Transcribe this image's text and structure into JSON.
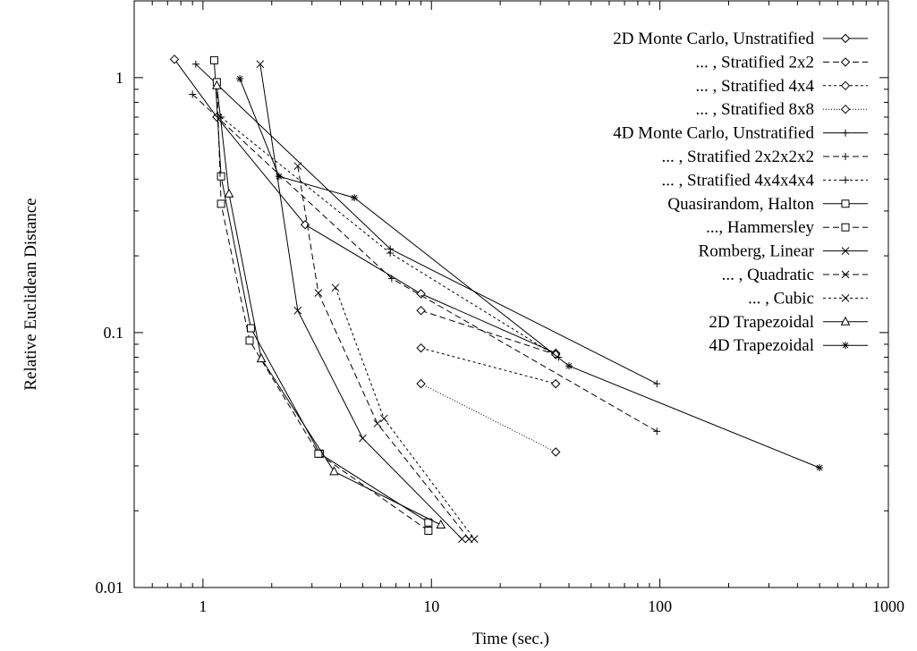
{
  "chart_data": {
    "type": "line",
    "xlabel": "Time (sec.)",
    "ylabel": "Relative Euclidean Distance",
    "x_scale": "log",
    "y_scale": "log",
    "xlim": [
      0.5,
      1000
    ],
    "ylim": [
      0.01,
      2
    ],
    "grid": false,
    "legend_position": "top-right",
    "x_ticks": [
      {
        "value": 1,
        "label": "1"
      },
      {
        "value": 10,
        "label": "10"
      },
      {
        "value": 100,
        "label": "100"
      },
      {
        "value": 1000,
        "label": "1000"
      }
    ],
    "y_ticks": [
      {
        "value": 0.01,
        "label": "0.01"
      },
      {
        "value": 0.1,
        "label": "0.1"
      },
      {
        "value": 1,
        "label": "1"
      }
    ],
    "series": [
      {
        "name": "2D Monte Carlo, Unstratified",
        "marker": "diamond",
        "dash": "solid",
        "x": [
          0.75,
          1.15,
          2.8,
          9.0,
          35.0
        ],
        "y": [
          1.18,
          0.7,
          0.265,
          0.142,
          0.083
        ]
      },
      {
        "name": "... , Stratified 2x2",
        "marker": "diamond",
        "dash": "dashed",
        "x": [
          9.0,
          35.0
        ],
        "y": [
          0.122,
          0.082
        ]
      },
      {
        "name": "... , Stratified 4x4",
        "marker": "diamond",
        "dash": "short-dashed",
        "x": [
          9.0,
          35.0
        ],
        "y": [
          0.087,
          0.063
        ]
      },
      {
        "name": "... , Stratified 8x8",
        "marker": "diamond",
        "dash": "dotted",
        "x": [
          9.0,
          35.0
        ],
        "y": [
          0.063,
          0.034
        ]
      },
      {
        "name": "4D Monte Carlo, Unstratified",
        "marker": "plus",
        "dash": "solid",
        "x": [
          0.93,
          6.6,
          97.0
        ],
        "y": [
          1.13,
          0.213,
          0.063
        ]
      },
      {
        "name": "... , Stratified 2x2x2x2",
        "marker": "plus",
        "dash": "dashed",
        "x": [
          0.9,
          6.7,
          97.0
        ],
        "y": [
          0.86,
          0.163,
          0.041
        ]
      },
      {
        "name": "... , Stratified 4x4x4x4",
        "marker": "plus",
        "dash": "short-dashed",
        "x": [
          1.2,
          6.6,
          36.0
        ],
        "y": [
          0.7,
          0.205,
          0.08
        ]
      },
      {
        "name": "Quasirandom, Halton",
        "marker": "square",
        "dash": "solid",
        "x": [
          1.12,
          1.2,
          1.62,
          3.25,
          9.7
        ],
        "y": [
          1.17,
          0.41,
          0.104,
          0.0335,
          0.018
        ]
      },
      {
        "name": "..., Hammersley",
        "marker": "square",
        "dash": "dashed",
        "x": [
          1.15,
          1.2,
          1.6,
          3.2,
          9.7
        ],
        "y": [
          0.96,
          0.32,
          0.093,
          0.0335,
          0.0167
        ]
      },
      {
        "name": "Romberg, Linear",
        "marker": "x",
        "dash": "solid",
        "x": [
          1.78,
          2.6,
          5.0,
          13.6
        ],
        "y": [
          1.13,
          0.122,
          0.0385,
          0.0155
        ]
      },
      {
        "name": "... , Quadratic",
        "marker": "x",
        "dash": "dashed",
        "x": [
          2.6,
          3.2,
          5.8,
          14.6
        ],
        "y": [
          0.45,
          0.143,
          0.044,
          0.0155
        ]
      },
      {
        "name": "... , Cubic",
        "marker": "x",
        "dash": "short-dashed",
        "x": [
          3.8,
          6.2,
          15.4
        ],
        "y": [
          0.15,
          0.046,
          0.0155
        ]
      },
      {
        "name": "2D Trapezoidal",
        "marker": "triangle",
        "dash": "solid",
        "x": [
          1.15,
          1.3,
          1.8,
          3.75,
          11.0
        ],
        "y": [
          0.93,
          0.35,
          0.079,
          0.0285,
          0.0176
        ]
      },
      {
        "name": "4D Trapezoidal",
        "marker": "asterisk",
        "dash": "solid",
        "x": [
          1.45,
          2.15,
          4.6,
          40.0,
          500.0
        ],
        "y": [
          0.99,
          0.41,
          0.338,
          0.074,
          0.0295
        ]
      }
    ]
  }
}
